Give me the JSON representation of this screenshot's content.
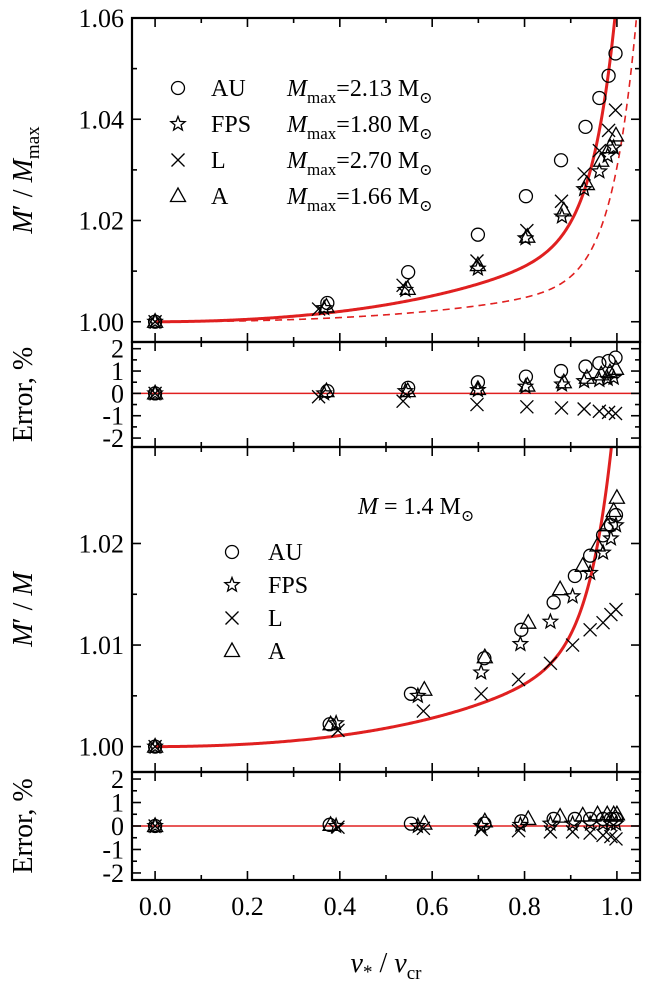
{
  "colors": {
    "curve": "#e02020",
    "axis": "#000000"
  },
  "x_axis": {
    "label_main": "ν",
    "label_main_sub": "*",
    "label_sep": " / ",
    "label_den": "ν",
    "label_den_sub": "cr",
    "range": [
      -0.05,
      1.05
    ],
    "ticks": [
      0.0,
      0.2,
      0.4,
      0.6,
      0.8,
      1.0
    ],
    "tick_labels": [
      "0.0",
      "0.2",
      "0.4",
      "0.6",
      "0.8",
      "1.0"
    ]
  },
  "chart_data": [
    {
      "type": "scatter",
      "panel": "top-main",
      "ylabel_parts": [
        "M",
        "′ / ",
        "M",
        "max"
      ],
      "ylim": [
        0.996,
        1.06
      ],
      "yticks": [
        1.0,
        1.02,
        1.04,
        1.06
      ],
      "ytick_labels": [
        "1.00",
        "1.02",
        "1.04",
        "1.06"
      ],
      "legend": [
        {
          "marker": "circle",
          "name": "AU",
          "mass_symbol": "M",
          "mass_sub": "max",
          "mass_value": "=2.13 M",
          "sun": "⊙"
        },
        {
          "marker": "star",
          "name": "FPS",
          "mass_symbol": "M",
          "mass_sub": "max",
          "mass_value": "=1.80 M",
          "sun": "⊙"
        },
        {
          "marker": "x",
          "name": "L",
          "mass_symbol": "M",
          "mass_sub": "max",
          "mass_value": "=2.70 M",
          "sun": "⊙"
        },
        {
          "marker": "triangle",
          "name": "A",
          "mass_symbol": "M",
          "mass_sub": "max",
          "mass_value": "=1.66 M",
          "sun": "⊙"
        }
      ],
      "legend_position": "top-left",
      "series": [
        {
          "name": "AU",
          "marker": "circle",
          "x": [
            0.0,
            0.373,
            0.548,
            0.699,
            0.803,
            0.879,
            0.932,
            0.962,
            0.982,
            0.997
          ],
          "y": [
            1.0,
            1.0037,
            1.0098,
            1.0172,
            1.0248,
            1.0319,
            1.0385,
            1.0442,
            1.0486,
            1.053
          ]
        },
        {
          "name": "FPS",
          "marker": "star",
          "x": [
            0.0,
            0.366,
            0.542,
            0.699,
            0.802,
            0.881,
            0.929,
            0.962,
            0.98,
            0.993
          ],
          "y": [
            1.0,
            1.0027,
            1.0063,
            1.0105,
            1.0165,
            1.0208,
            1.0262,
            1.0297,
            1.0328,
            1.0344
          ]
        },
        {
          "name": "L",
          "marker": "x",
          "x": [
            0.0,
            0.354,
            0.537,
            0.697,
            0.805,
            0.88,
            0.929,
            0.962,
            0.982,
            0.997
          ],
          "y": [
            1.0,
            1.0025,
            1.0072,
            1.012,
            1.018,
            1.0238,
            1.0292,
            1.0338,
            1.0378,
            1.0418
          ]
        },
        {
          "name": "A",
          "marker": "triangle",
          "x": [
            0.0,
            0.371,
            0.547,
            0.699,
            0.806,
            0.885,
            0.935,
            0.966,
            0.985,
            0.998
          ],
          "y": [
            1.0,
            1.003,
            1.0065,
            1.0112,
            1.0168,
            1.022,
            1.0272,
            1.0318,
            1.0345,
            1.0368
          ]
        }
      ],
      "curves": [
        {
          "style": "solid",
          "formula": "1+0.0115*x^2+0.0075*x^4+0.045*x^20"
        },
        {
          "style": "dashed",
          "formula": "1+0.0045*x^2+0.004*x^4+0.022*x^20"
        }
      ]
    },
    {
      "type": "scatter",
      "panel": "top-error",
      "ylabel": "Error, %",
      "ylim": [
        -2.4,
        2.3
      ],
      "yticks": [
        -2,
        -1,
        0,
        1,
        2
      ],
      "ytick_labels": [
        "-2",
        "-1",
        "0",
        "1",
        "2"
      ],
      "series": [
        {
          "name": "AU",
          "marker": "circle",
          "x": [
            0.0,
            0.373,
            0.548,
            0.699,
            0.803,
            0.879,
            0.932,
            0.962,
            0.982,
            0.997
          ],
          "y": [
            0.0,
            0.1,
            0.25,
            0.5,
            0.75,
            1.0,
            1.2,
            1.35,
            1.45,
            1.6
          ]
        },
        {
          "name": "FPS",
          "marker": "star",
          "x": [
            0.0,
            0.366,
            0.542,
            0.699,
            0.802,
            0.881,
            0.929,
            0.962,
            0.98,
            0.993
          ],
          "y": [
            0.0,
            0.0,
            0.1,
            0.15,
            0.3,
            0.4,
            0.55,
            0.6,
            0.65,
            0.7
          ]
        },
        {
          "name": "L",
          "marker": "x",
          "x": [
            0.0,
            0.354,
            0.537,
            0.697,
            0.805,
            0.88,
            0.929,
            0.962,
            0.982,
            0.997
          ],
          "y": [
            0.0,
            -0.15,
            -0.35,
            -0.5,
            -0.6,
            -0.65,
            -0.7,
            -0.8,
            -0.85,
            -0.9
          ]
        },
        {
          "name": "A",
          "marker": "triangle",
          "x": [
            0.0,
            0.371,
            0.547,
            0.699,
            0.806,
            0.885,
            0.935,
            0.966,
            0.985,
            0.998
          ],
          "y": [
            0.0,
            0.1,
            0.1,
            0.2,
            0.35,
            0.5,
            0.7,
            0.85,
            0.95,
            1.1
          ]
        }
      ],
      "reference_line": 0
    },
    {
      "type": "scatter",
      "panel": "bottom-main",
      "ylabel_parts": [
        "M",
        "′ / ",
        "M"
      ],
      "ylim": [
        0.9975,
        1.0295
      ],
      "yticks": [
        1.0,
        1.01,
        1.02
      ],
      "ytick_labels": [
        "1.00",
        "1.01",
        "1.02"
      ],
      "annotation": {
        "symbol": "M",
        "text": " = 1.4 M",
        "sun": "⊙"
      },
      "legend": [
        {
          "marker": "circle",
          "name": "AU"
        },
        {
          "marker": "star",
          "name": "FPS"
        },
        {
          "marker": "x",
          "name": "L"
        },
        {
          "marker": "triangle",
          "name": "A"
        }
      ],
      "legend_position": "center-left",
      "series": [
        {
          "name": "AU",
          "marker": "circle",
          "x": [
            0.0,
            0.378,
            0.554,
            0.713,
            0.793,
            0.863,
            0.909,
            0.942,
            0.97,
            0.987,
            0.998
          ],
          "y": [
            1.0,
            1.0022,
            1.0052,
            1.0087,
            1.0115,
            1.0142,
            1.0168,
            1.0188,
            1.0208,
            1.0218,
            1.0228
          ]
        },
        {
          "name": "FPS",
          "marker": "star",
          "x": [
            0.0,
            0.392,
            0.569,
            0.706,
            0.791,
            0.856,
            0.904,
            0.942,
            0.97,
            0.987,
            0.998
          ],
          "y": [
            1.0,
            1.0023,
            1.005,
            1.0073,
            1.0101,
            1.0123,
            1.0148,
            1.0171,
            1.0191,
            1.0205,
            1.0218
          ]
        },
        {
          "name": "L",
          "marker": "x",
          "x": [
            0.0,
            0.396,
            0.581,
            0.706,
            0.787,
            0.856,
            0.904,
            0.942,
            0.97,
            0.987,
            0.998
          ],
          "y": [
            1.0,
            1.0016,
            1.0035,
            1.0052,
            1.0066,
            1.0082,
            1.01,
            1.0115,
            1.0122,
            1.013,
            1.0135
          ]
        },
        {
          "name": "A",
          "marker": "triangle",
          "x": [
            0.0,
            0.38,
            0.583,
            0.714,
            0.808,
            0.877,
            0.926,
            0.958,
            0.979,
            0.993,
            1.0
          ],
          "y": [
            1.0,
            1.0022,
            1.0056,
            1.0088,
            1.0122,
            1.0155,
            1.0178,
            1.0198,
            1.0218,
            1.0232,
            1.0245
          ]
        }
      ],
      "curves": [
        {
          "style": "solid",
          "formula": "1+0.006*x^2+0.005*x^4+0.024*x^20"
        }
      ]
    },
    {
      "type": "scatter",
      "panel": "bottom-error",
      "ylabel": "Error, %",
      "ylim": [
        -2.3,
        2.3
      ],
      "yticks": [
        -2,
        -1,
        0,
        1,
        2
      ],
      "ytick_labels": [
        "-2",
        "-1",
        "0",
        "1",
        "2"
      ],
      "series": [
        {
          "name": "AU",
          "marker": "circle",
          "x": [
            0.0,
            0.378,
            0.554,
            0.713,
            0.793,
            0.863,
            0.909,
            0.942,
            0.97,
            0.987,
            0.998
          ],
          "y": [
            0.0,
            0.05,
            0.1,
            0.1,
            0.2,
            0.3,
            0.3,
            0.3,
            0.3,
            0.3,
            0.3
          ]
        },
        {
          "name": "FPS",
          "marker": "star",
          "x": [
            0.0,
            0.392,
            0.569,
            0.706,
            0.791,
            0.856,
            0.904,
            0.942,
            0.97,
            0.987,
            0.998
          ],
          "y": [
            0.0,
            0.0,
            0.0,
            0.0,
            0.05,
            0.1,
            0.1,
            0.1,
            0.1,
            0.1,
            0.1
          ]
        },
        {
          "name": "L",
          "marker": "x",
          "x": [
            0.0,
            0.396,
            0.581,
            0.706,
            0.787,
            0.856,
            0.904,
            0.942,
            0.97,
            0.987,
            0.998
          ],
          "y": [
            0.0,
            -0.05,
            -0.1,
            -0.15,
            -0.2,
            -0.25,
            -0.25,
            -0.3,
            -0.4,
            -0.45,
            -0.55
          ]
        },
        {
          "name": "A",
          "marker": "triangle",
          "x": [
            0.0,
            0.38,
            0.583,
            0.714,
            0.808,
            0.877,
            0.926,
            0.958,
            0.979,
            0.993,
            1.0
          ],
          "y": [
            0.0,
            0.05,
            0.1,
            0.2,
            0.3,
            0.4,
            0.45,
            0.5,
            0.5,
            0.5,
            0.5
          ]
        }
      ],
      "reference_line": 0
    }
  ]
}
